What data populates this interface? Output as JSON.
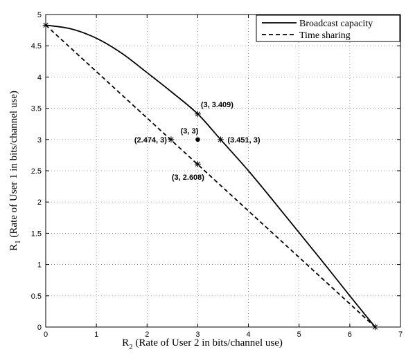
{
  "chart_data": {
    "type": "line",
    "xlabel": {
      "main": "R",
      "sub": "2",
      "rest": " (Rate of User 2 in bits/channel use)"
    },
    "ylabel": {
      "main": "R",
      "sub": "1",
      "rest": " (Rate of User 1 in bits/channel use)"
    },
    "xlim": [
      0,
      7
    ],
    "ylim": [
      0,
      5
    ],
    "xticks": [
      0,
      1,
      2,
      3,
      4,
      5,
      6,
      7
    ],
    "xtick_labels": [
      "0",
      "1",
      "2",
      "3",
      "4",
      "5",
      "6",
      "7"
    ],
    "yticks": [
      0,
      0.5,
      1,
      1.5,
      2,
      2.5,
      3,
      3.5,
      4,
      4.5,
      5
    ],
    "ytick_labels": [
      "0",
      "0.5",
      "1",
      "1.5",
      "2",
      "2.5",
      "3",
      "3.5",
      "4",
      "4.5",
      "5"
    ],
    "grid": true,
    "legend_position": "top-right",
    "series": [
      {
        "name": "Broadcast capacity",
        "style": "solid",
        "x": [
          0,
          0.5,
          1,
          1.5,
          2,
          2.5,
          3,
          3.451,
          4,
          4.5,
          5,
          5.5,
          6,
          6.5
        ],
        "y": [
          4.83,
          4.77,
          4.62,
          4.38,
          4.07,
          3.75,
          3.409,
          3.0,
          2.5,
          2.01,
          1.51,
          1.01,
          0.5,
          0.0
        ]
      },
      {
        "name": "Time sharing",
        "style": "dashed",
        "x": [
          0,
          6.5
        ],
        "y": [
          4.83,
          0.0
        ]
      }
    ],
    "markers": [
      {
        "x": 0,
        "y": 4.83,
        "symbol": "star"
      },
      {
        "x": 6.5,
        "y": 0.0,
        "symbol": "star"
      },
      {
        "x": 3,
        "y": 3.409,
        "symbol": "star"
      },
      {
        "x": 3.451,
        "y": 3,
        "symbol": "star"
      },
      {
        "x": 2.474,
        "y": 3,
        "symbol": "star"
      },
      {
        "x": 3,
        "y": 2.608,
        "symbol": "star"
      },
      {
        "x": 3,
        "y": 3,
        "symbol": "dot"
      }
    ],
    "annotations": [
      {
        "text": "(3, 3.409)",
        "x": 3,
        "y": 3.409,
        "anchor": "above"
      },
      {
        "text": "(3, 3)",
        "x": 3,
        "y": 3,
        "anchor": "above-left"
      },
      {
        "text": "(2.474, 3)",
        "x": 2.474,
        "y": 3,
        "anchor": "left"
      },
      {
        "text": "(3.451, 3)",
        "x": 3.451,
        "y": 3,
        "anchor": "right"
      },
      {
        "text": "(3, 2.608)",
        "x": 3,
        "y": 2.608,
        "anchor": "below"
      }
    ]
  }
}
